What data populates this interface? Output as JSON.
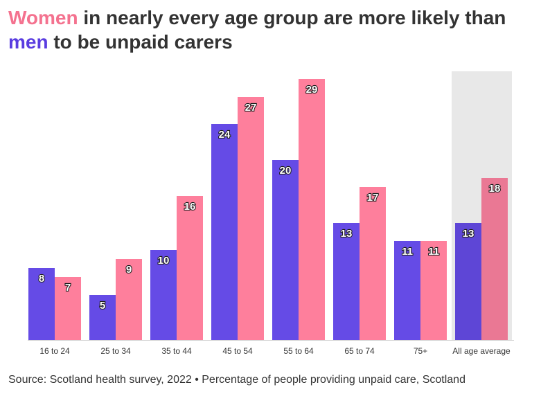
{
  "title": {
    "women": "Women",
    "line1_rest": " in nearly every age group are more likely than",
    "men": "men",
    "line2_rest": " to be unpaid carers"
  },
  "source": "Source: Scotland health survey, 2022 • Percentage of people providing unpaid care, Scotland",
  "colors": {
    "men": "#654be6",
    "women": "#fe7f9c",
    "men_highlight": "#5e46d6",
    "women_highlight": "#ea7894",
    "highlight_band": "#e8e8e8",
    "axis": "#cccccc"
  },
  "chart_data": {
    "type": "bar",
    "title": "Women in nearly every age group are more likely than men to be unpaid carers",
    "xlabel": "",
    "ylabel": "Percentage of people providing unpaid care",
    "ylim": [
      0,
      30
    ],
    "grid": false,
    "highlight_category": "All age average",
    "categories": [
      "16 to 24",
      "25 to 34",
      "35 to 44",
      "45 to 54",
      "55 to 64",
      "65 to 74",
      "75+",
      "All age average"
    ],
    "series": [
      {
        "name": "Men",
        "values": [
          8,
          5,
          10,
          24,
          20,
          13,
          11,
          13
        ]
      },
      {
        "name": "Women",
        "values": [
          7,
          9,
          16,
          27,
          29,
          17,
          11,
          18
        ]
      }
    ]
  }
}
